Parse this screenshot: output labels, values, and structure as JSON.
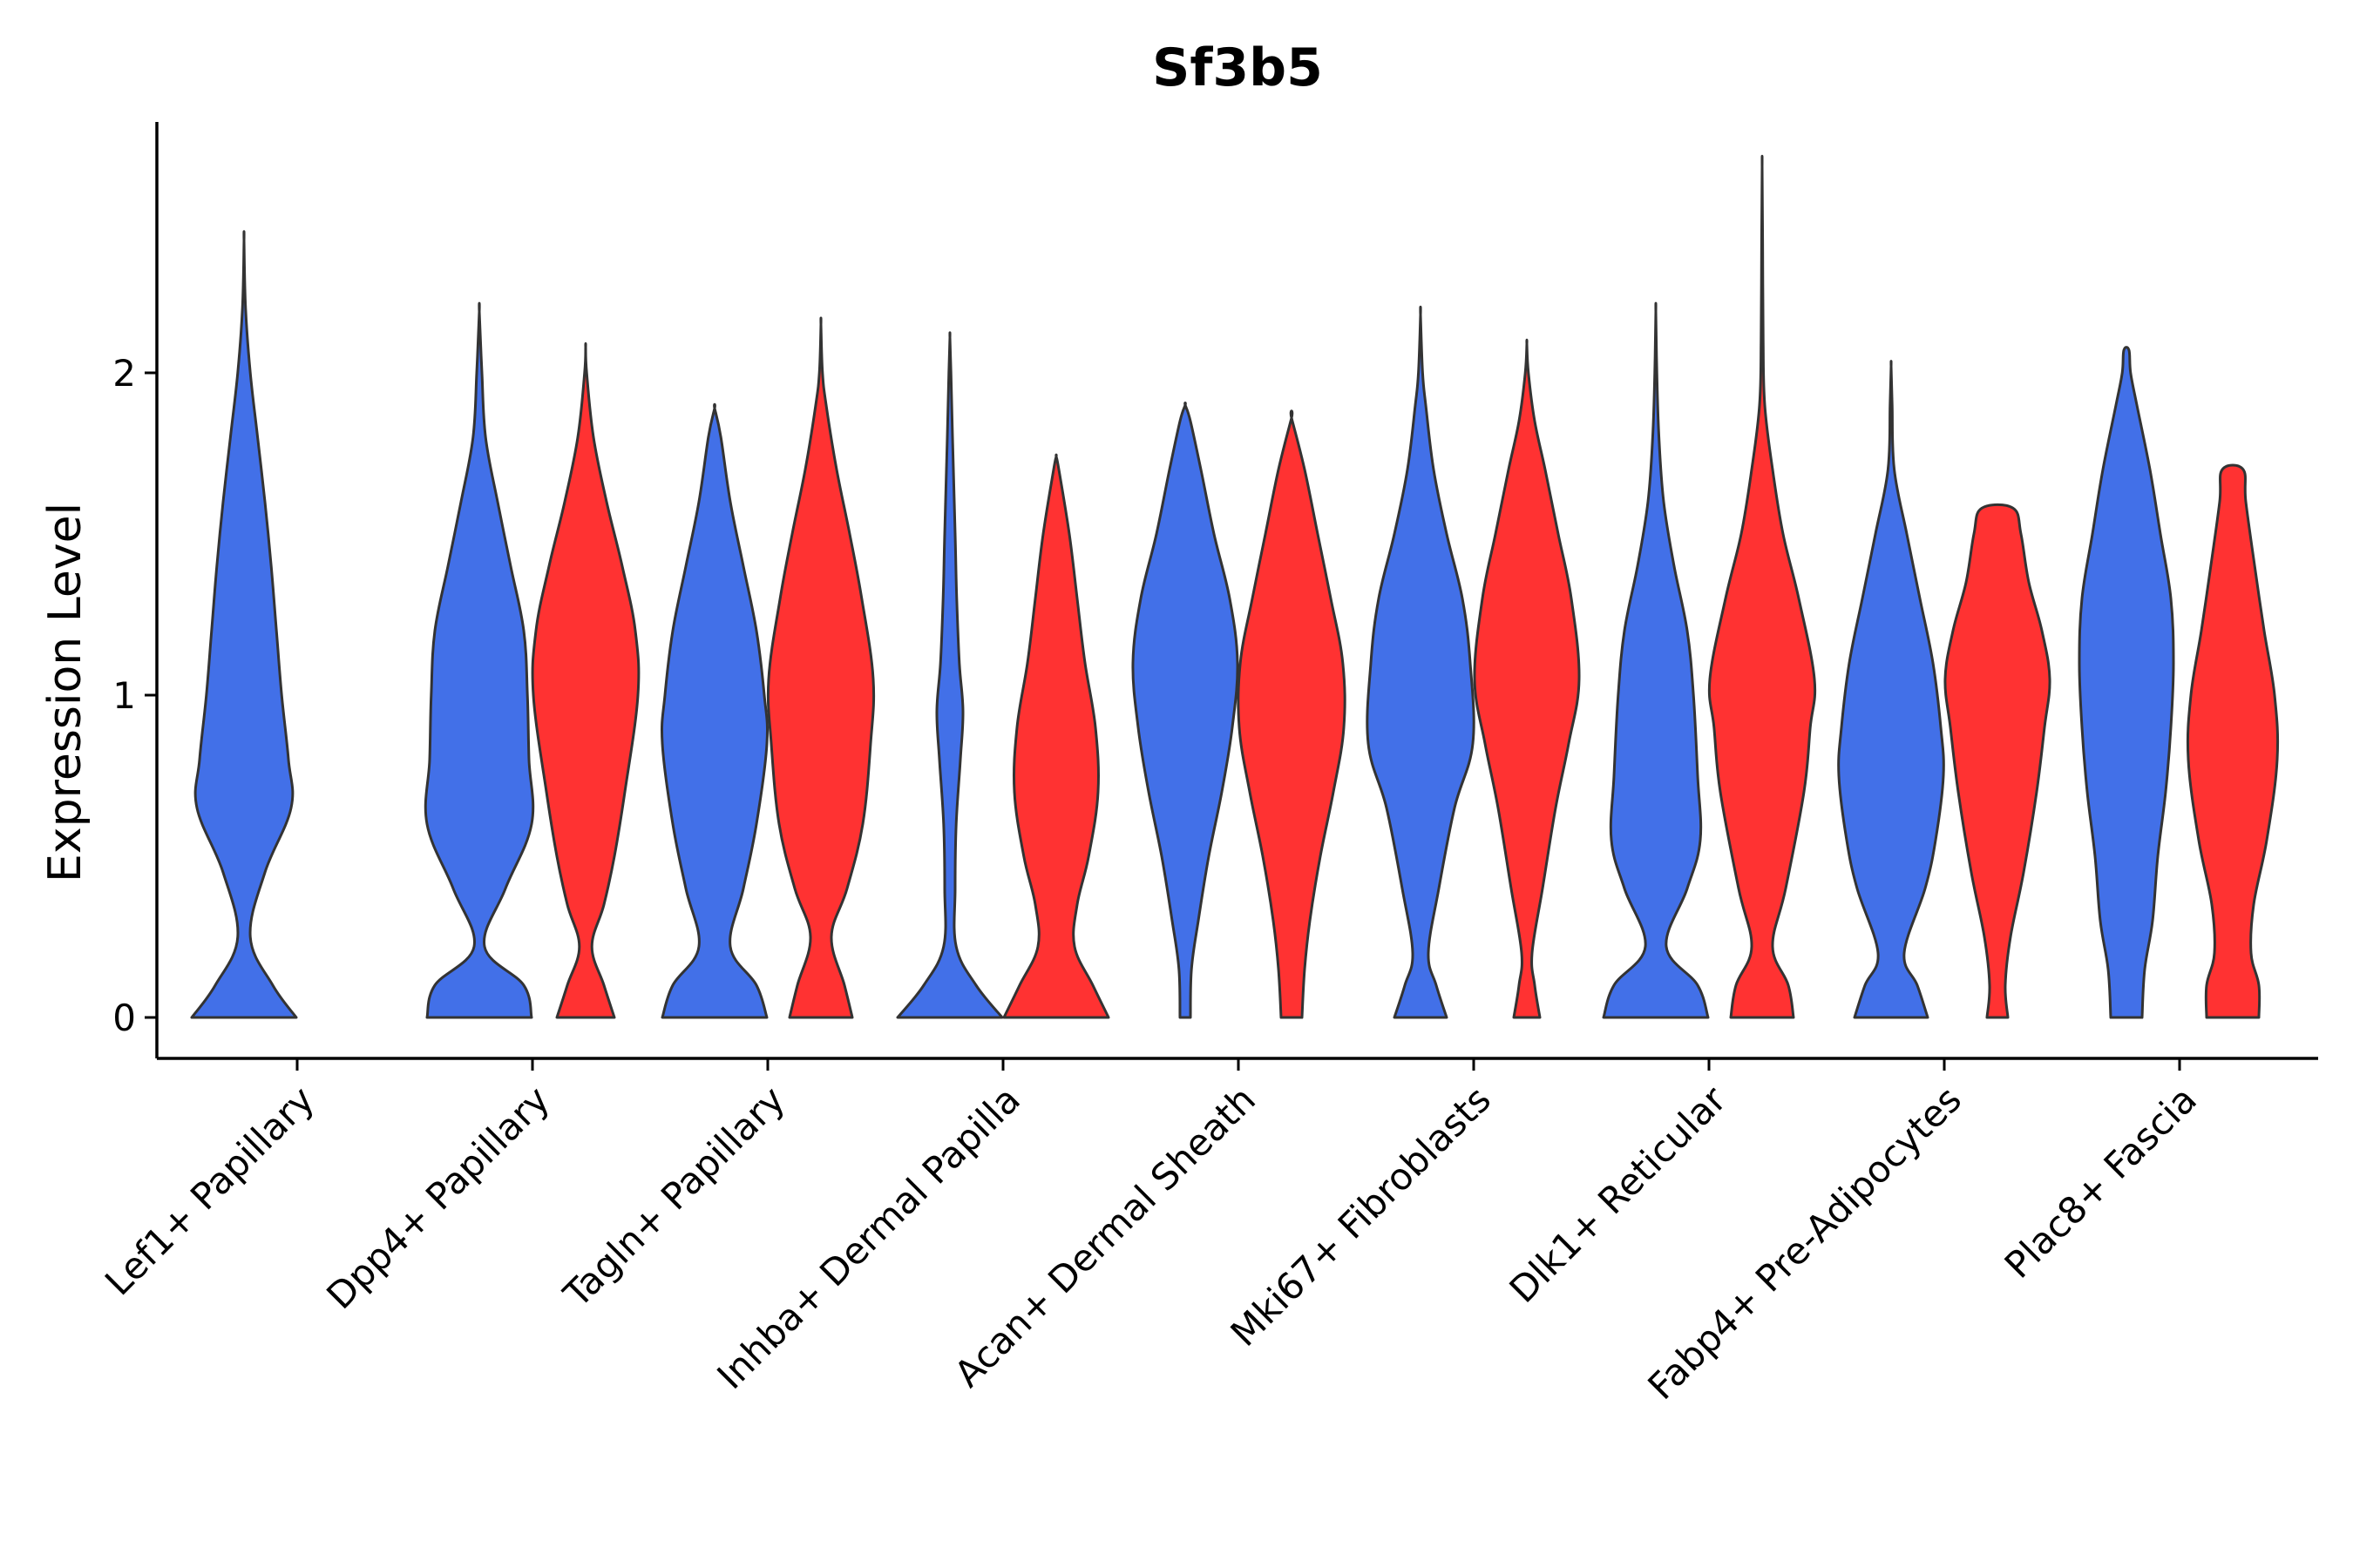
{
  "chart_data": {
    "type": "violin",
    "title": "Sf3b5",
    "xlabel": "",
    "ylabel": "Expression Level",
    "ylim": [
      -0.13,
      2.8
    ],
    "yticks": [
      0,
      1,
      2
    ],
    "grid": false,
    "legend": "none",
    "group_colors": [
      "#4270E8",
      "#FF3232"
    ],
    "categories": [
      "Lef1+ Papillary",
      "Dpp4+ Papillary",
      "Tagln+ Papillary",
      "Inhba+ Dermal Papilla",
      "Acan+ Dermal Sheath",
      "Mki67+ Fibroblasts",
      "Dlk1+ Reticular",
      "Fabp4+ Pre-Adipocytes",
      "Plac8+ Fascia"
    ],
    "violins": [
      {
        "category": "Lef1+ Papillary",
        "group": 0,
        "max": 2.41,
        "density": [
          [
            0,
            1.0
          ],
          [
            0.1,
            0.55
          ],
          [
            0.25,
            0.12
          ],
          [
            0.45,
            0.4
          ],
          [
            0.65,
            0.9
          ],
          [
            0.8,
            0.85
          ],
          [
            1.0,
            0.72
          ],
          [
            1.2,
            0.62
          ],
          [
            1.4,
            0.52
          ],
          [
            1.6,
            0.4
          ],
          [
            1.8,
            0.26
          ],
          [
            2.0,
            0.12
          ],
          [
            2.2,
            0.03
          ],
          [
            2.41,
            0.0
          ]
        ]
      },
      {
        "category": "Dpp4+ Papillary",
        "group": 0,
        "max": 2.19,
        "density": [
          [
            0,
            1.0
          ],
          [
            0.1,
            0.85
          ],
          [
            0.22,
            0.1
          ],
          [
            0.4,
            0.5
          ],
          [
            0.6,
            1.0
          ],
          [
            0.8,
            0.95
          ],
          [
            1.0,
            0.92
          ],
          [
            1.2,
            0.85
          ],
          [
            1.4,
            0.6
          ],
          [
            1.6,
            0.35
          ],
          [
            1.8,
            0.12
          ],
          [
            2.0,
            0.05
          ],
          [
            2.19,
            0.0
          ]
        ]
      },
      {
        "category": "Dpp4+ Papillary",
        "group": 1,
        "max": 2.08,
        "density": [
          [
            0,
            0.55
          ],
          [
            0.1,
            0.35
          ],
          [
            0.22,
            0.12
          ],
          [
            0.35,
            0.35
          ],
          [
            0.5,
            0.55
          ],
          [
            0.7,
            0.75
          ],
          [
            1.0,
            1.0
          ],
          [
            1.2,
            0.95
          ],
          [
            1.4,
            0.7
          ],
          [
            1.6,
            0.4
          ],
          [
            1.8,
            0.15
          ],
          [
            2.0,
            0.02
          ],
          [
            2.08,
            0.0
          ]
        ]
      },
      {
        "category": "Tagln+ Papillary",
        "group": 0,
        "max": 1.89,
        "density": [
          [
            0,
            1.0
          ],
          [
            0.1,
            0.8
          ],
          [
            0.22,
            0.3
          ],
          [
            0.4,
            0.55
          ],
          [
            0.6,
            0.8
          ],
          [
            0.85,
            1.0
          ],
          [
            1.0,
            0.95
          ],
          [
            1.2,
            0.8
          ],
          [
            1.4,
            0.55
          ],
          [
            1.6,
            0.3
          ],
          [
            1.8,
            0.12
          ],
          [
            1.89,
            0.0
          ]
        ]
      },
      {
        "category": "Tagln+ Papillary",
        "group": 1,
        "max": 2.15,
        "density": [
          [
            0,
            0.6
          ],
          [
            0.1,
            0.45
          ],
          [
            0.25,
            0.2
          ],
          [
            0.4,
            0.5
          ],
          [
            0.6,
            0.8
          ],
          [
            0.85,
            0.95
          ],
          [
            1.05,
            1.0
          ],
          [
            1.3,
            0.78
          ],
          [
            1.5,
            0.55
          ],
          [
            1.7,
            0.3
          ],
          [
            1.9,
            0.1
          ],
          [
            2.0,
            0.03
          ],
          [
            2.15,
            0.0
          ]
        ]
      },
      {
        "category": "Inhba+ Dermal Papilla",
        "group": 0,
        "max": 2.11,
        "density": [
          [
            0,
            1.0
          ],
          [
            0.1,
            0.5
          ],
          [
            0.22,
            0.12
          ],
          [
            0.4,
            0.1
          ],
          [
            0.6,
            0.12
          ],
          [
            0.8,
            0.2
          ],
          [
            0.95,
            0.25
          ],
          [
            1.1,
            0.18
          ],
          [
            1.3,
            0.13
          ],
          [
            1.5,
            0.1
          ],
          [
            1.8,
            0.05
          ],
          [
            2.0,
            0.02
          ],
          [
            2.11,
            0.0
          ]
        ]
      },
      {
        "category": "Inhba+ Dermal Papilla",
        "group": 1,
        "max": 1.74,
        "density": [
          [
            0,
            1.0
          ],
          [
            0.1,
            0.7
          ],
          [
            0.22,
            0.35
          ],
          [
            0.35,
            0.4
          ],
          [
            0.5,
            0.62
          ],
          [
            0.7,
            0.8
          ],
          [
            0.9,
            0.75
          ],
          [
            1.1,
            0.55
          ],
          [
            1.3,
            0.4
          ],
          [
            1.5,
            0.25
          ],
          [
            1.7,
            0.05
          ],
          [
            1.74,
            0.0
          ]
        ]
      },
      {
        "category": "Acan+ Dermal Sheath",
        "group": 0,
        "max": 1.9,
        "density": [
          [
            0,
            0.1
          ],
          [
            0.15,
            0.12
          ],
          [
            0.3,
            0.25
          ],
          [
            0.5,
            0.45
          ],
          [
            0.7,
            0.7
          ],
          [
            0.9,
            0.9
          ],
          [
            1.1,
            1.0
          ],
          [
            1.3,
            0.85
          ],
          [
            1.5,
            0.55
          ],
          [
            1.7,
            0.3
          ],
          [
            1.85,
            0.1
          ],
          [
            1.9,
            0.0
          ]
        ]
      },
      {
        "category": "Acan+ Dermal Sheath",
        "group": 1,
        "max": 1.86,
        "density": [
          [
            0,
            0.2
          ],
          [
            0.15,
            0.25
          ],
          [
            0.3,
            0.35
          ],
          [
            0.5,
            0.55
          ],
          [
            0.7,
            0.8
          ],
          [
            0.9,
            1.0
          ],
          [
            1.1,
            0.98
          ],
          [
            1.3,
            0.75
          ],
          [
            1.5,
            0.5
          ],
          [
            1.7,
            0.25
          ],
          [
            1.86,
            0.0
          ]
        ]
      },
      {
        "category": "Mki67+ Fibroblasts",
        "group": 0,
        "max": 2.18,
        "density": [
          [
            0,
            0.5
          ],
          [
            0.1,
            0.3
          ],
          [
            0.2,
            0.15
          ],
          [
            0.4,
            0.35
          ],
          [
            0.65,
            0.65
          ],
          [
            0.85,
            1.0
          ],
          [
            1.1,
            0.95
          ],
          [
            1.3,
            0.8
          ],
          [
            1.5,
            0.5
          ],
          [
            1.7,
            0.25
          ],
          [
            1.9,
            0.1
          ],
          [
            2.0,
            0.04
          ],
          [
            2.18,
            0.0
          ]
        ]
      },
      {
        "category": "Mki67+ Fibroblasts",
        "group": 1,
        "max": 2.09,
        "density": [
          [
            0,
            0.25
          ],
          [
            0.1,
            0.15
          ],
          [
            0.2,
            0.1
          ],
          [
            0.4,
            0.3
          ],
          [
            0.65,
            0.55
          ],
          [
            0.85,
            0.8
          ],
          [
            1.05,
            1.0
          ],
          [
            1.3,
            0.85
          ],
          [
            1.5,
            0.6
          ],
          [
            1.7,
            0.35
          ],
          [
            1.85,
            0.15
          ],
          [
            2.0,
            0.03
          ],
          [
            2.09,
            0.0
          ]
        ]
      },
      {
        "category": "Dlk1+ Reticular",
        "group": 0,
        "max": 2.19,
        "density": [
          [
            0,
            1.0
          ],
          [
            0.1,
            0.8
          ],
          [
            0.22,
            0.2
          ],
          [
            0.4,
            0.6
          ],
          [
            0.55,
            0.85
          ],
          [
            0.75,
            0.8
          ],
          [
            1.0,
            0.72
          ],
          [
            1.2,
            0.6
          ],
          [
            1.4,
            0.35
          ],
          [
            1.6,
            0.15
          ],
          [
            1.8,
            0.06
          ],
          [
            2.0,
            0.02
          ],
          [
            2.19,
            0.0
          ]
        ]
      },
      {
        "category": "Dlk1+ Reticular",
        "group": 1,
        "max": 2.64,
        "density": [
          [
            0,
            0.6
          ],
          [
            0.1,
            0.5
          ],
          [
            0.22,
            0.2
          ],
          [
            0.4,
            0.45
          ],
          [
            0.7,
            0.8
          ],
          [
            0.9,
            0.92
          ],
          [
            1.05,
            1.0
          ],
          [
            1.3,
            0.7
          ],
          [
            1.5,
            0.4
          ],
          [
            1.7,
            0.2
          ],
          [
            1.9,
            0.05
          ],
          [
            2.1,
            0.02
          ],
          [
            2.4,
            0.01
          ],
          [
            2.64,
            0.0
          ]
        ]
      },
      {
        "category": "Fabp4+ Pre-Adipocytes",
        "group": 0,
        "max": 2.02,
        "density": [
          [
            0,
            0.7
          ],
          [
            0.1,
            0.5
          ],
          [
            0.2,
            0.25
          ],
          [
            0.4,
            0.65
          ],
          [
            0.55,
            0.85
          ],
          [
            0.75,
            1.0
          ],
          [
            0.9,
            0.95
          ],
          [
            1.1,
            0.8
          ],
          [
            1.3,
            0.55
          ],
          [
            1.5,
            0.3
          ],
          [
            1.7,
            0.06
          ],
          [
            1.9,
            0.02
          ],
          [
            2.02,
            0.0
          ]
        ]
      },
      {
        "category": "Fabp4+ Pre-Adipocytes",
        "group": 1,
        "max": 1.58,
        "density": [
          [
            0,
            0.2
          ],
          [
            0.1,
            0.15
          ],
          [
            0.25,
            0.25
          ],
          [
            0.45,
            0.5
          ],
          [
            0.7,
            0.75
          ],
          [
            0.9,
            0.9
          ],
          [
            1.05,
            1.0
          ],
          [
            1.2,
            0.85
          ],
          [
            1.35,
            0.6
          ],
          [
            1.5,
            0.45
          ],
          [
            1.58,
            0.3
          ]
        ]
      },
      {
        "category": "Plac8+ Fascia",
        "group": 0,
        "max": 2.07,
        "density": [
          [
            0,
            0.3
          ],
          [
            0.15,
            0.35
          ],
          [
            0.3,
            0.5
          ],
          [
            0.5,
            0.6
          ],
          [
            0.7,
            0.75
          ],
          [
            0.9,
            0.85
          ],
          [
            1.1,
            0.9
          ],
          [
            1.3,
            0.85
          ],
          [
            1.5,
            0.65
          ],
          [
            1.7,
            0.45
          ],
          [
            1.9,
            0.2
          ],
          [
            2.0,
            0.08
          ],
          [
            2.07,
            0.05
          ]
        ]
      },
      {
        "category": "Plac8+ Fascia",
        "group": 1,
        "max": 1.7,
        "density": [
          [
            0,
            0.5
          ],
          [
            0.1,
            0.5
          ],
          [
            0.2,
            0.35
          ],
          [
            0.35,
            0.4
          ],
          [
            0.55,
            0.65
          ],
          [
            0.8,
            0.85
          ],
          [
            1.0,
            0.8
          ],
          [
            1.2,
            0.6
          ],
          [
            1.4,
            0.42
          ],
          [
            1.6,
            0.25
          ],
          [
            1.7,
            0.2
          ]
        ]
      }
    ]
  }
}
